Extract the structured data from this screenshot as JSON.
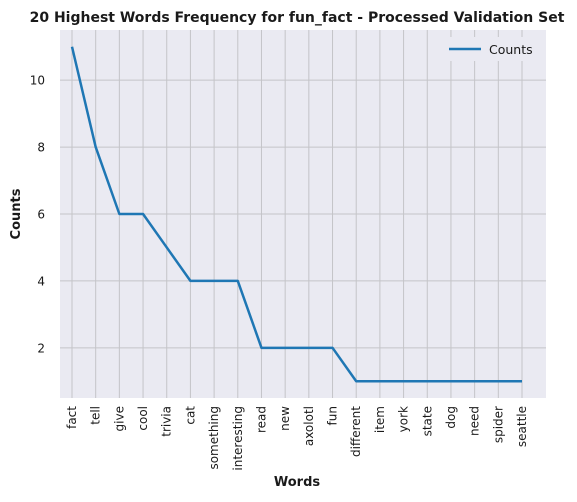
{
  "chart_data": {
    "type": "line",
    "title": "20 Highest Words Frequency for fun_fact - Processed Validation Set",
    "xlabel": "Words",
    "ylabel": "Counts",
    "categories": [
      "fact",
      "tell",
      "give",
      "cool",
      "trivia",
      "cat",
      "something",
      "interesting",
      "read",
      "new",
      "axolotl",
      "fun",
      "different",
      "item",
      "york",
      "state",
      "dog",
      "need",
      "spider",
      "seattle"
    ],
    "series": [
      {
        "name": "Counts",
        "values": [
          11,
          8,
          6,
          6,
          5,
          4,
          4,
          4,
          2,
          2,
          2,
          2,
          1,
          1,
          1,
          1,
          1,
          1,
          1,
          1
        ]
      }
    ],
    "yticks": [
      2,
      4,
      6,
      8,
      10
    ],
    "ylim": [
      0.5,
      11.5
    ],
    "grid": true,
    "legend_position": "top-right",
    "colors": {
      "line": "#1f77b4",
      "plot_background": "#eaeaf2",
      "grid": "#c4c4c8"
    }
  }
}
